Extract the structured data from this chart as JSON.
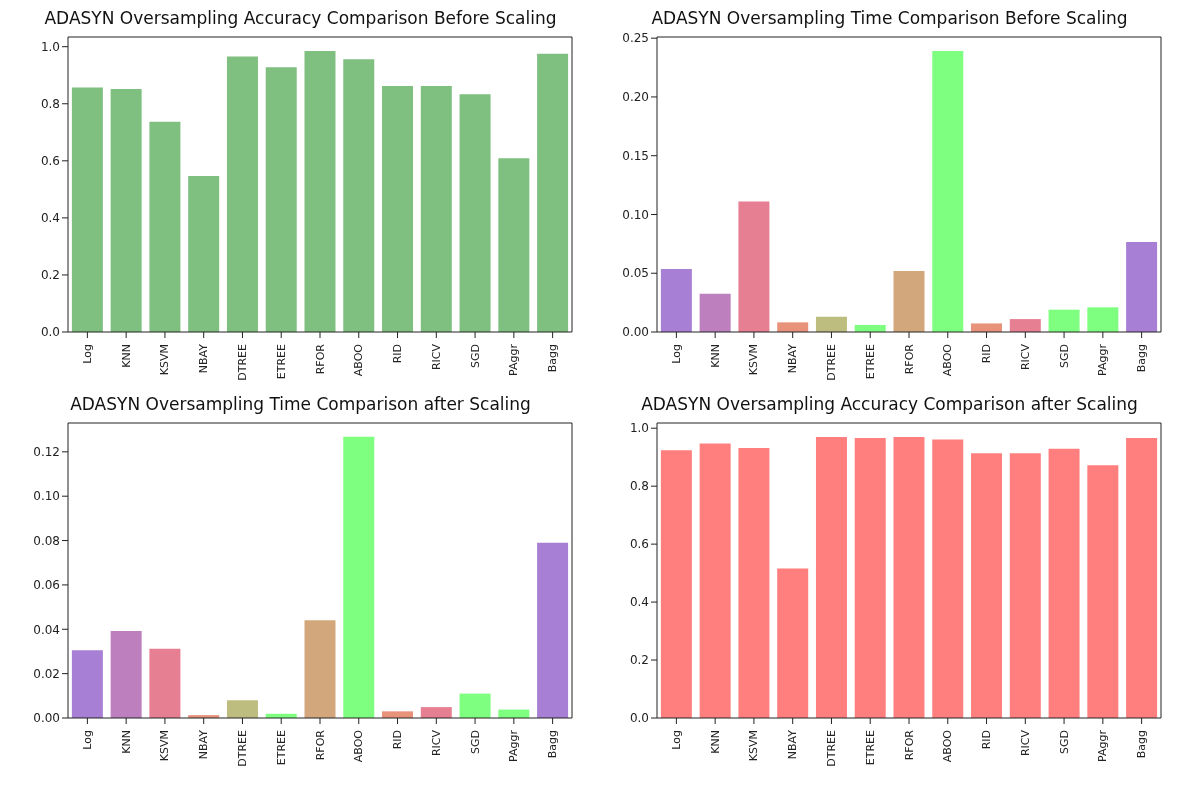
{
  "chart_data": [
    {
      "type": "bar",
      "title": "ADASYN Oversampling Accuracy Comparison Before Scaling",
      "categories": [
        "Log",
        "KNN",
        "KSVM",
        "NBAY",
        "DTREE",
        "ETREE",
        "RFOR",
        "ABOO",
        "RID",
        "RICV",
        "SGD",
        "PAggr",
        "Bagg"
      ],
      "values": [
        0.857,
        0.852,
        0.737,
        0.547,
        0.966,
        0.928,
        0.985,
        0.956,
        0.862,
        0.862,
        0.833,
        0.609,
        0.975
      ],
      "color": "#7fbf7f",
      "ylim": [
        0,
        1.034
      ],
      "yticks": [
        {
          "value": 0,
          "label": "0.0"
        },
        {
          "value": 0.2,
          "label": "0.2"
        },
        {
          "value": 0.4,
          "label": "0.4"
        },
        {
          "value": 0.6,
          "label": "0.6"
        },
        {
          "value": 0.8,
          "label": "0.8"
        },
        {
          "value": 1,
          "label": "1.0"
        }
      ],
      "grid": false,
      "legend": false
    },
    {
      "type": "bar",
      "title": "ADASYN Oversampling Time Comparison Before Scaling",
      "categories": [
        "Log",
        "KNN",
        "KSVM",
        "NBAY",
        "DTREE",
        "ETREE",
        "RFOR",
        "ABOO",
        "RID",
        "RICV",
        "SGD",
        "PAggr",
        "Bagg"
      ],
      "values": [
        0.0535,
        0.0325,
        0.111,
        0.0082,
        0.013,
        0.006,
        0.052,
        0.239,
        0.0073,
        0.011,
        0.019,
        0.021,
        0.0765
      ],
      "colors": [
        "#a77fd4",
        "#bd7fbe",
        "#e77f92",
        "#e9927a",
        "#bdbd7f",
        "#7fff7f",
        "#d3a77c",
        "#7fff7f",
        "#e9927a",
        "#e77f92",
        "#7fff7f",
        "#7fff7f",
        "#a77fd4"
      ],
      "ylim": [
        0,
        0.251
      ],
      "yticks": [
        {
          "value": 0,
          "label": "0.00"
        },
        {
          "value": 0.05,
          "label": "0.05"
        },
        {
          "value": 0.1,
          "label": "0.10"
        },
        {
          "value": 0.15,
          "label": "0.15"
        },
        {
          "value": 0.2,
          "label": "0.20"
        },
        {
          "value": 0.25,
          "label": "0.25"
        }
      ],
      "grid": false,
      "legend": false
    },
    {
      "type": "bar",
      "title": "ADASYN Oversampling Time Comparison after Scaling",
      "categories": [
        "Log",
        "KNN",
        "KSVM",
        "NBAY",
        "DTREE",
        "ETREE",
        "RFOR",
        "ABOO",
        "RID",
        "RICV",
        "SGD",
        "PAggr",
        "Bagg"
      ],
      "values": [
        0.0306,
        0.0392,
        0.0312,
        0.0013,
        0.008,
        0.0019,
        0.0441,
        0.1268,
        0.003,
        0.0049,
        0.011,
        0.0038,
        0.079
      ],
      "colors": [
        "#a77fd4",
        "#bd7fbe",
        "#e77f92",
        "#e9927a",
        "#bdbd7f",
        "#7fff7f",
        "#d3a77c",
        "#7fff7f",
        "#e9927a",
        "#e77f92",
        "#7fff7f",
        "#7fff7f",
        "#a77fd4"
      ],
      "ylim": [
        0,
        0.133
      ],
      "yticks": [
        {
          "value": 0,
          "label": "0.00"
        },
        {
          "value": 0.02,
          "label": "0.02"
        },
        {
          "value": 0.04,
          "label": "0.04"
        },
        {
          "value": 0.06,
          "label": "0.06"
        },
        {
          "value": 0.08,
          "label": "0.08"
        },
        {
          "value": 0.1,
          "label": "0.10"
        },
        {
          "value": 0.12,
          "label": "0.12"
        }
      ],
      "grid": false,
      "legend": false
    },
    {
      "type": "bar",
      "title": "ADASYN Oversampling Accuracy Comparison after Scaling",
      "categories": [
        "Log",
        "KNN",
        "KSVM",
        "NBAY",
        "DTREE",
        "ETREE",
        "RFOR",
        "ABOO",
        "RID",
        "RICV",
        "SGD",
        "PAggr",
        "Bagg"
      ],
      "values": [
        0.924,
        0.947,
        0.932,
        0.516,
        0.97,
        0.966,
        0.97,
        0.961,
        0.914,
        0.914,
        0.929,
        0.872,
        0.966
      ],
      "color": "#ff7f7f",
      "ylim": [
        0,
        1.018
      ],
      "yticks": [
        {
          "value": 0,
          "label": "0.0"
        },
        {
          "value": 0.2,
          "label": "0.2"
        },
        {
          "value": 0.4,
          "label": "0.4"
        },
        {
          "value": 0.6,
          "label": "0.6"
        },
        {
          "value": 0.8,
          "label": "0.8"
        },
        {
          "value": 1,
          "label": "1.0"
        }
      ],
      "grid": false,
      "legend": false
    }
  ]
}
